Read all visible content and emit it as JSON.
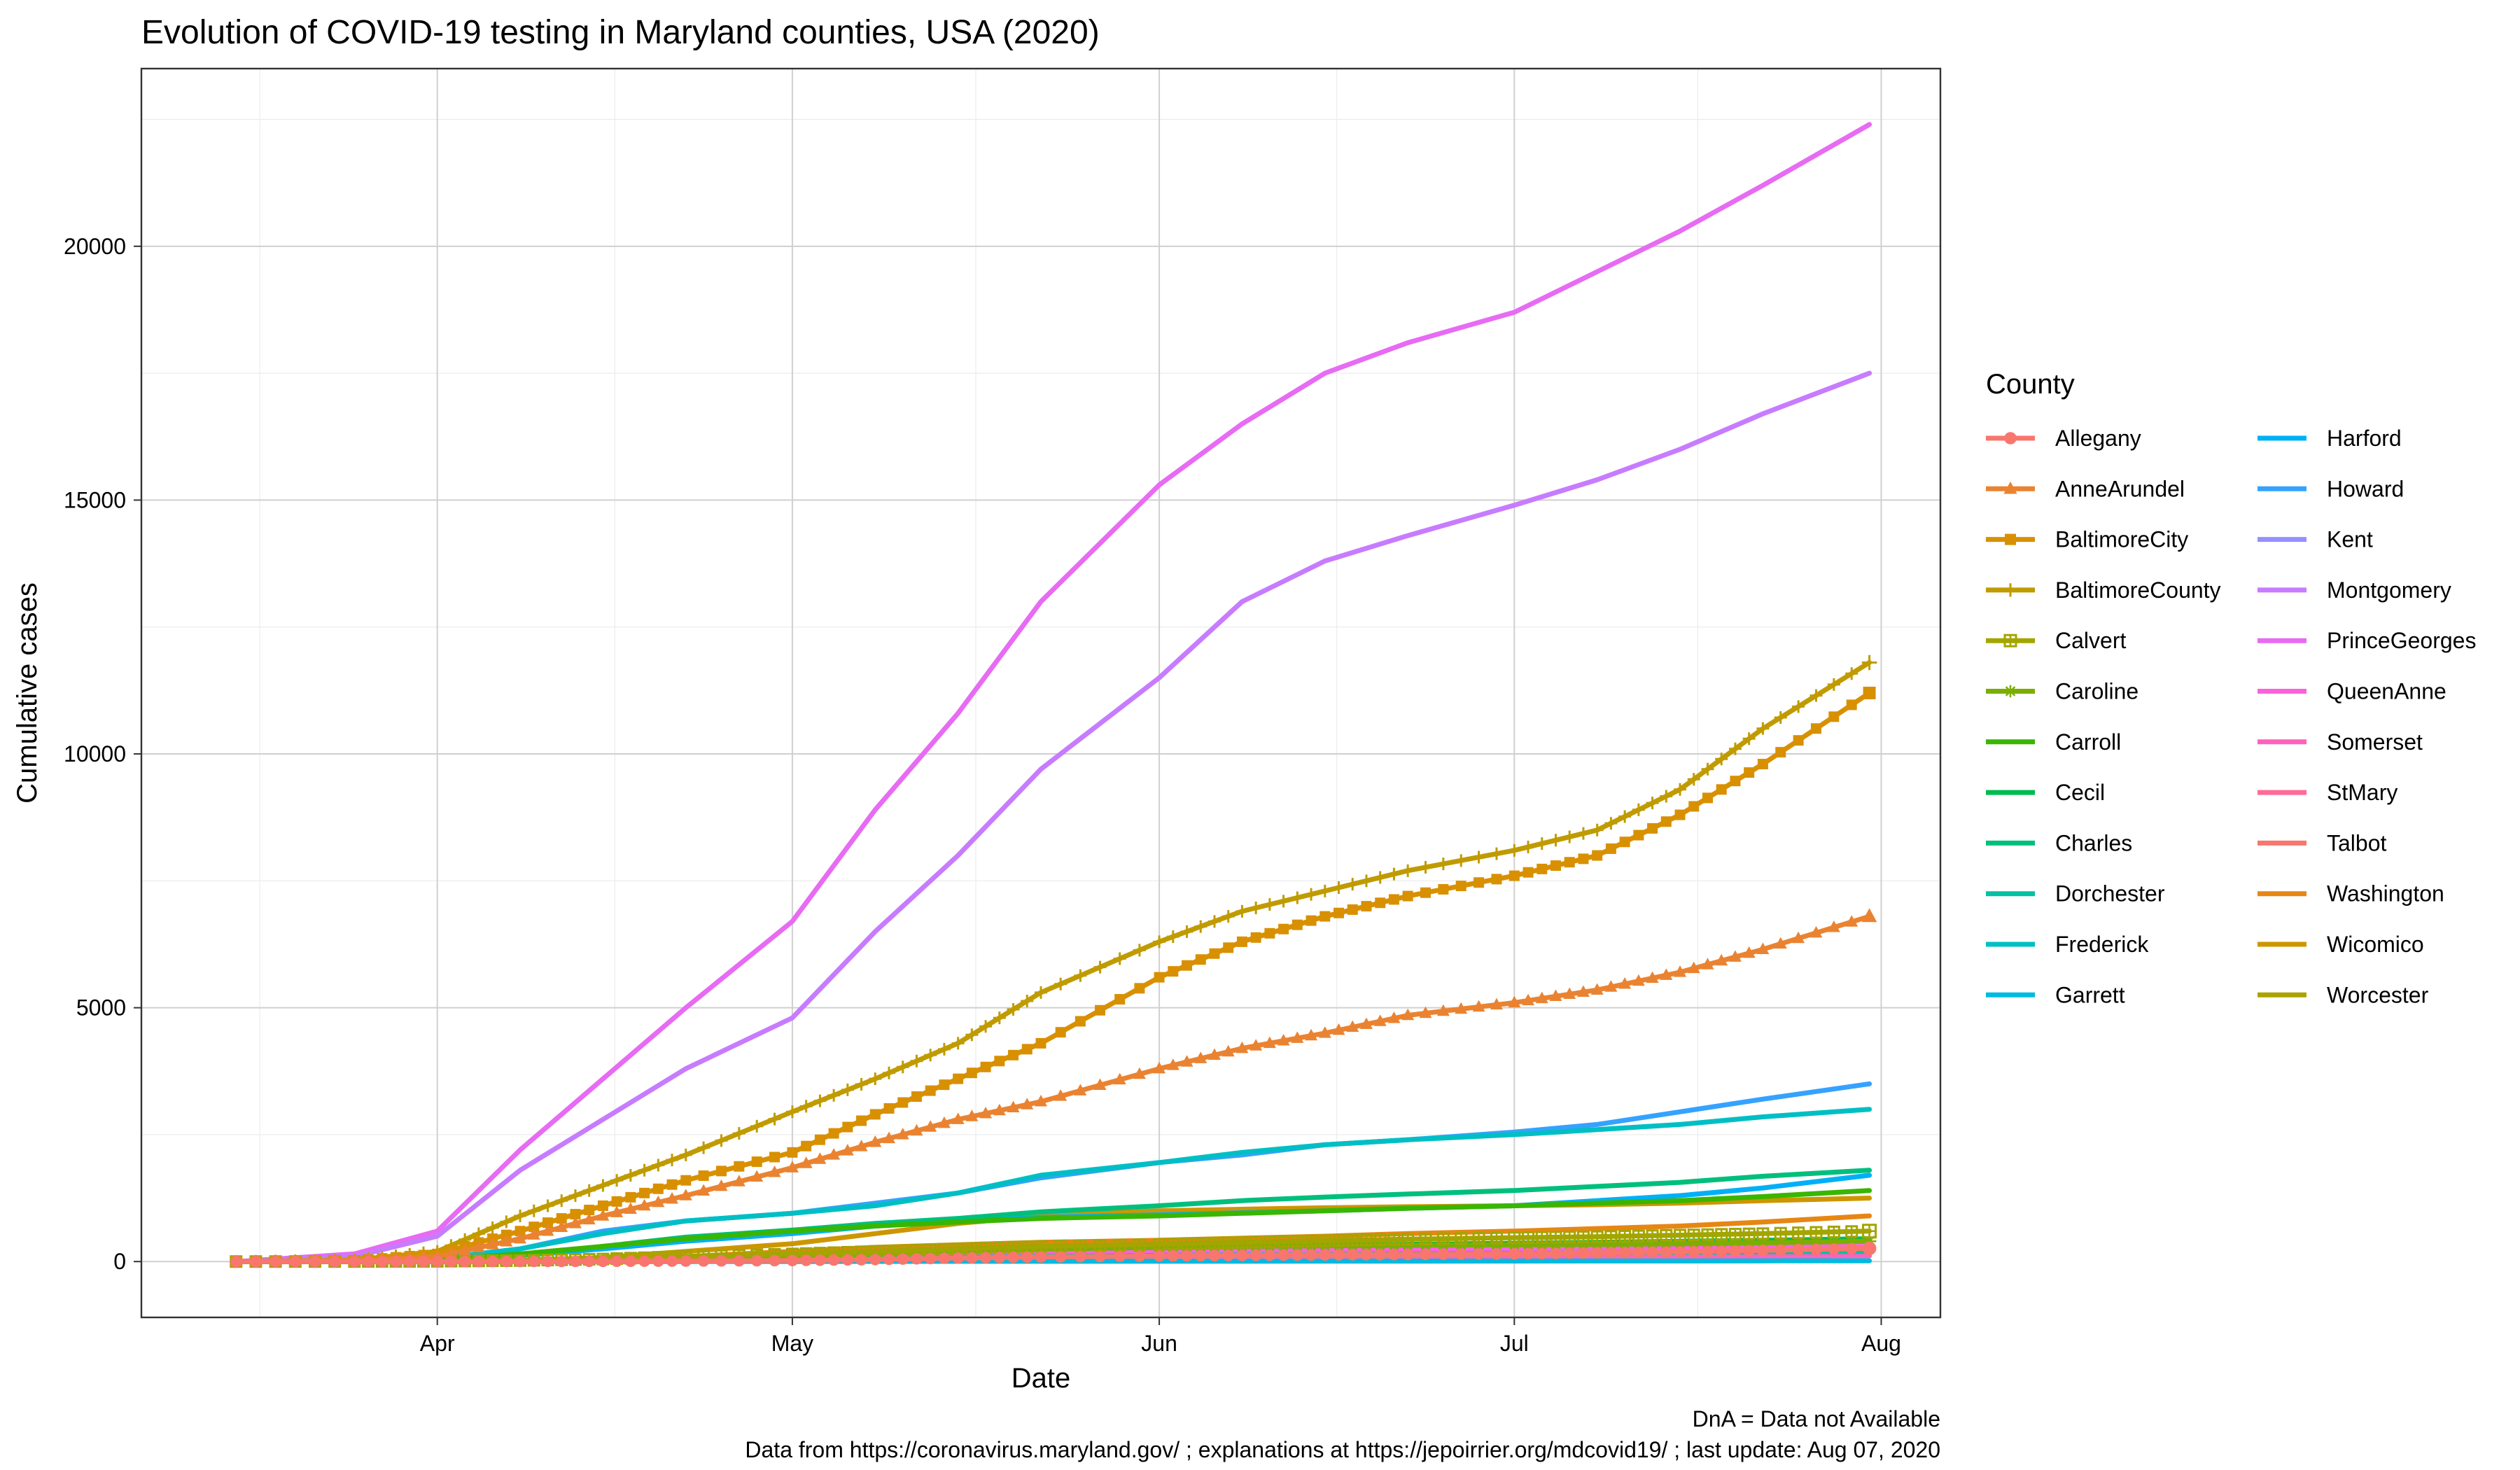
{
  "chart_data": {
    "type": "line",
    "title": "Evolution of COVID-19 testing in Maryland counties, USA (2020)",
    "xlabel": "Date",
    "ylabel": "Cumulative cases",
    "x_ticks": [
      {
        "date": "2020-04-01",
        "label": "Apr"
      },
      {
        "date": "2020-05-01",
        "label": "May"
      },
      {
        "date": "2020-06-01",
        "label": "Jun"
      },
      {
        "date": "2020-07-01",
        "label": "Jul"
      },
      {
        "date": "2020-08-01",
        "label": "Aug"
      }
    ],
    "y_ticks": [
      0,
      5000,
      10000,
      15000,
      20000
    ],
    "xlim": [
      "2020-03-07",
      "2020-08-06"
    ],
    "ylim": [
      -1100,
      23500
    ],
    "grid": true,
    "legend_title": "County",
    "legend_position": "right",
    "caption_lines": [
      "DnA = Data not Available",
      "Data from https://coronavirus.maryland.gov/ ; explanations at https://jepoirrier.org/mdcovid19/ ; last update: Aug 07, 2020"
    ],
    "x": [
      "2020-03-15",
      "2020-03-25",
      "2020-04-01",
      "2020-04-08",
      "2020-04-15",
      "2020-04-22",
      "2020-05-01",
      "2020-05-08",
      "2020-05-15",
      "2020-05-22",
      "2020-06-01",
      "2020-06-08",
      "2020-06-15",
      "2020-06-22",
      "2020-07-01",
      "2020-07-08",
      "2020-07-15",
      "2020-07-22",
      "2020-07-31"
    ],
    "series": [
      {
        "name": "Allegany",
        "color": "#F8766D",
        "marker": "circle",
        "values": [
          0,
          0,
          1,
          2,
          5,
          10,
          20,
          40,
          70,
          90,
          110,
          120,
          130,
          140,
          150,
          170,
          190,
          220,
          260
        ]
      },
      {
        "name": "AnneArundel",
        "color": "#EA8331",
        "marker": "triangle",
        "values": [
          0,
          20,
          100,
          450,
          900,
          1300,
          1850,
          2350,
          2800,
          3150,
          3800,
          4200,
          4500,
          4850,
          5100,
          5350,
          5700,
          6150,
          6800
        ]
      },
      {
        "name": "BaltimoreCity",
        "color": "#D89000",
        "marker": "square",
        "values": [
          0,
          20,
          150,
          600,
          1100,
          1600,
          2150,
          2900,
          3600,
          4300,
          5600,
          6300,
          6800,
          7200,
          7600,
          8000,
          8800,
          9800,
          11200
        ]
      },
      {
        "name": "BaltimoreCounty",
        "color": "#C09B00",
        "marker": "plus",
        "values": [
          0,
          30,
          200,
          900,
          1500,
          2100,
          2950,
          3600,
          4300,
          5300,
          6300,
          6900,
          7300,
          7700,
          8100,
          8500,
          9300,
          10500,
          11800
        ]
      },
      {
        "name": "Calvert",
        "color": "#A3A500",
        "marker": "boxplus",
        "values": [
          0,
          1,
          5,
          20,
          50,
          100,
          150,
          200,
          250,
          300,
          340,
          380,
          410,
          440,
          470,
          490,
          520,
          550,
          600
        ]
      },
      {
        "name": "Caroline",
        "color": "#7CAE00",
        "marker": "star",
        "values": [
          0,
          0,
          1,
          5,
          20,
          50,
          100,
          150,
          200,
          250,
          280,
          300,
          310,
          320,
          330,
          340,
          350,
          370,
          400
        ]
      },
      {
        "name": "Carroll",
        "color": "#39B600",
        "marker": "none",
        "values": [
          0,
          5,
          30,
          150,
          300,
          450,
          600,
          700,
          780,
          850,
          900,
          950,
          1000,
          1050,
          1100,
          1150,
          1200,
          1280,
          1400
        ]
      },
      {
        "name": "Cecil",
        "color": "#00BB4E",
        "marker": "none",
        "values": [
          0,
          0,
          5,
          20,
          50,
          90,
          130,
          170,
          210,
          250,
          280,
          300,
          320,
          340,
          360,
          380,
          400,
          420,
          450
        ]
      },
      {
        "name": "Charles",
        "color": "#00BF7D",
        "marker": "none",
        "values": [
          0,
          5,
          30,
          120,
          300,
          480,
          620,
          750,
          850,
          980,
          1100,
          1200,
          1270,
          1330,
          1400,
          1480,
          1560,
          1680,
          1800
        ]
      },
      {
        "name": "Dorchester",
        "color": "#00C1A3",
        "marker": "none",
        "values": [
          0,
          0,
          1,
          5,
          10,
          20,
          40,
          60,
          80,
          100,
          120,
          130,
          140,
          150,
          160,
          170,
          180,
          190,
          200
        ]
      },
      {
        "name": "Frederick",
        "color": "#00BFC4",
        "marker": "none",
        "values": [
          0,
          10,
          60,
          250,
          550,
          800,
          950,
          1100,
          1350,
          1700,
          1950,
          2150,
          2300,
          2400,
          2500,
          2600,
          2700,
          2850,
          3000
        ]
      },
      {
        "name": "Garrett",
        "color": "#00BAE0",
        "marker": "none",
        "values": [
          0,
          0,
          0,
          0,
          0,
          1,
          2,
          3,
          4,
          5,
          6,
          7,
          8,
          9,
          10,
          11,
          12,
          14,
          15
        ]
      },
      {
        "name": "Harford",
        "color": "#00B0F6",
        "marker": "none",
        "values": [
          0,
          5,
          30,
          120,
          250,
          400,
          550,
          700,
          800,
          870,
          920,
          960,
          1000,
          1050,
          1100,
          1200,
          1300,
          1450,
          1700
        ]
      },
      {
        "name": "Howard",
        "color": "#35A2FF",
        "marker": "none",
        "values": [
          0,
          10,
          60,
          250,
          600,
          800,
          950,
          1150,
          1350,
          1650,
          1950,
          2100,
          2300,
          2400,
          2550,
          2700,
          2950,
          3200,
          3500
        ]
      },
      {
        "name": "Kent",
        "color": "#9590FF",
        "marker": "none",
        "values": [
          0,
          0,
          1,
          3,
          10,
          20,
          40,
          60,
          80,
          100,
          120,
          130,
          140,
          150,
          160,
          170,
          180,
          190,
          200
        ]
      },
      {
        "name": "Montgomery",
        "color": "#C77CFF",
        "marker": "none",
        "values": [
          0,
          100,
          500,
          1800,
          2800,
          3800,
          4800,
          6500,
          8000,
          9700,
          11500,
          13000,
          13800,
          14300,
          14900,
          15400,
          16000,
          16700,
          17500
        ]
      },
      {
        "name": "PrinceGeorges",
        "color": "#E76BF3",
        "marker": "none",
        "values": [
          0,
          150,
          600,
          2200,
          3600,
          5000,
          6700,
          8900,
          10800,
          13000,
          15300,
          16500,
          17500,
          18100,
          18700,
          19500,
          20300,
          21200,
          22400
        ]
      },
      {
        "name": "QueenAnne",
        "color": "#FA62DB",
        "marker": "none",
        "values": [
          0,
          0,
          1,
          5,
          20,
          50,
          100,
          130,
          160,
          180,
          200,
          210,
          220,
          230,
          240,
          250,
          260,
          280,
          300
        ]
      },
      {
        "name": "Somerset",
        "color": "#FF62BC",
        "marker": "none",
        "values": [
          0,
          0,
          0,
          1,
          2,
          5,
          10,
          20,
          30,
          40,
          50,
          60,
          70,
          75,
          80,
          85,
          90,
          100,
          110
        ]
      },
      {
        "name": "StMary",
        "color": "#FF6A98",
        "marker": "none",
        "values": [
          0,
          0,
          2,
          10,
          30,
          60,
          100,
          130,
          160,
          180,
          200,
          220,
          240,
          260,
          280,
          300,
          320,
          350,
          400
        ]
      },
      {
        "name": "Talbot",
        "color": "#F8766D",
        "marker": "none",
        "values": [
          0,
          0,
          1,
          3,
          10,
          20,
          40,
          55,
          70,
          80,
          90,
          100,
          110,
          120,
          130,
          140,
          150,
          160,
          170
        ]
      },
      {
        "name": "Washington",
        "color": "#E68613",
        "marker": "none",
        "values": [
          0,
          0,
          5,
          20,
          50,
          100,
          200,
          280,
          330,
          380,
          420,
          460,
          500,
          550,
          600,
          650,
          700,
          780,
          900
        ]
      },
      {
        "name": "Wicomico",
        "color": "#CD9600",
        "marker": "none",
        "values": [
          0,
          0,
          2,
          20,
          80,
          200,
          350,
          550,
          750,
          900,
          1000,
          1030,
          1060,
          1080,
          1100,
          1120,
          1150,
          1200,
          1250
        ]
      },
      {
        "name": "Worcester",
        "color": "#ABA300",
        "marker": "none",
        "values": [
          0,
          0,
          1,
          5,
          20,
          40,
          70,
          90,
          110,
          130,
          150,
          160,
          170,
          180,
          190,
          200,
          210,
          220,
          240
        ]
      }
    ]
  }
}
